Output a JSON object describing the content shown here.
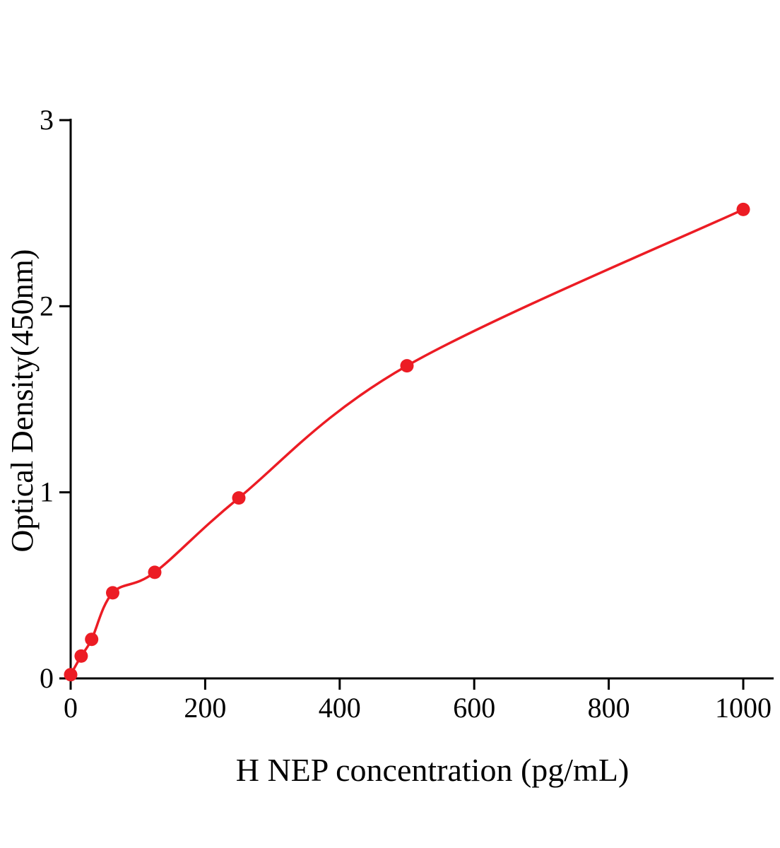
{
  "chart_data": {
    "type": "scatter",
    "title": "",
    "xlabel": "H NEP concentration (pg/mL)",
    "ylabel": "Optical Density(450nm)",
    "x": [
      0,
      15.6,
      31.2,
      62.5,
      125,
      250,
      500,
      1000
    ],
    "y": [
      0.02,
      0.12,
      0.21,
      0.46,
      0.57,
      0.97,
      1.68,
      2.52
    ],
    "xlim": [
      0,
      1000
    ],
    "ylim": [
      0,
      3
    ],
    "xticks": [
      0,
      200,
      400,
      600,
      800,
      1000
    ],
    "yticks": [
      0,
      1,
      2,
      3
    ],
    "grid": false,
    "legend": "none",
    "point_color": "#ec1c24",
    "line_color": "#ec1c24",
    "axis_color": "#000000"
  }
}
